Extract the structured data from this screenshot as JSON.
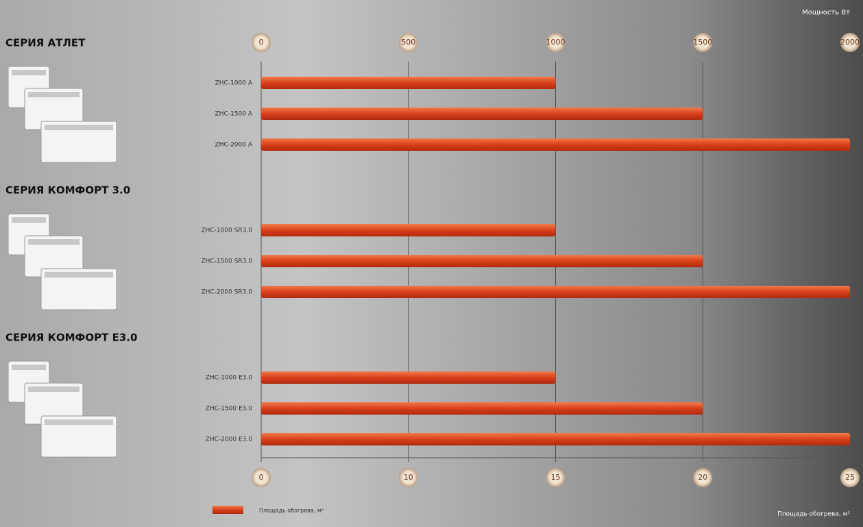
{
  "chart_data": {
    "type": "bar",
    "orientation": "horizontal",
    "x_label": "Мощность Вт",
    "x2_label": "Площадь обогрева, м²",
    "series_name": "Площадь обогрева, м²",
    "color": "#e0441c",
    "xlim": [
      0,
      2000
    ],
    "xticks": [
      0,
      500,
      1000,
      1500,
      2000
    ],
    "x2ticks": [
      0,
      10,
      15,
      20,
      25
    ],
    "grid": true,
    "groups": [
      {
        "title": "СЕРИЯ АТЛЕТ",
        "categories": [
          "ZHC-1000 A",
          "ZHC-1500 A",
          "ZHC-2000 A"
        ],
        "values": [
          1000,
          1500,
          2000
        ]
      },
      {
        "title": "СЕРИЯ КОМФОРТ 3.0",
        "categories": [
          "ZHC-1000 SR3.0",
          "ZHC-1500 SR3.0",
          "ZHC-2000 SR3.0"
        ],
        "values": [
          1000,
          1500,
          2000
        ]
      },
      {
        "title": "СЕРИЯ КОМФОРТ E3.0",
        "categories": [
          "ZHC-1000 E3.0",
          "ZHC-1500 E3.0",
          "ZHC-2000 E3.0"
        ],
        "values": [
          1000,
          1500,
          2000
        ]
      }
    ]
  }
}
